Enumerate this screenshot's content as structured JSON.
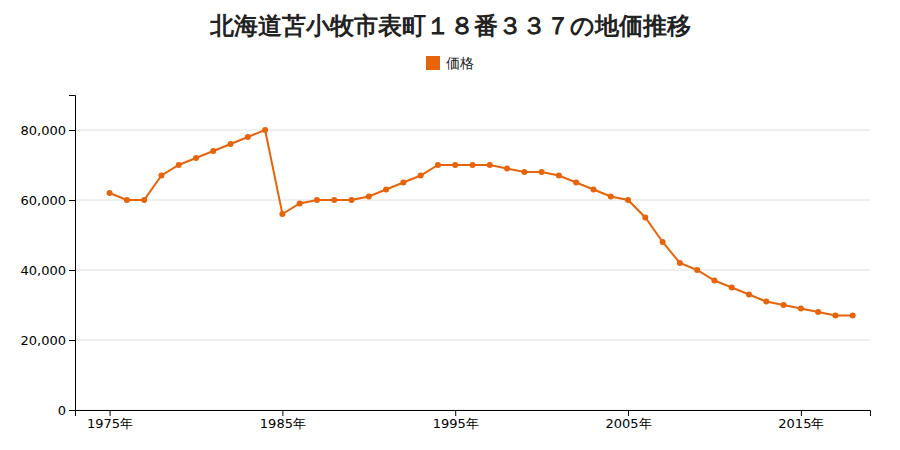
{
  "chart_data": {
    "type": "line",
    "title": "北海道苫小牧市表町１８番３３７の地価推移",
    "x": [
      1975,
      1976,
      1977,
      1978,
      1979,
      1980,
      1981,
      1982,
      1983,
      1984,
      1985,
      1986,
      1987,
      1988,
      1989,
      1990,
      1991,
      1992,
      1993,
      1994,
      1995,
      1996,
      1997,
      1998,
      1999,
      2000,
      2001,
      2002,
      2003,
      2004,
      2005,
      2006,
      2007,
      2008,
      2009,
      2010,
      2011,
      2012,
      2013,
      2014,
      2015,
      2016,
      2017,
      2018
    ],
    "series": [
      {
        "name": "価格",
        "color": "#E8640A",
        "values": [
          62000,
          60000,
          60000,
          67000,
          70000,
          72000,
          74000,
          76000,
          78000,
          80000,
          56000,
          59000,
          60000,
          60000,
          60000,
          61000,
          63000,
          65000,
          67000,
          70000,
          70000,
          70000,
          70000,
          69000,
          68000,
          68000,
          67000,
          65000,
          63000,
          61000,
          60000,
          55000,
          48000,
          42000,
          40000,
          37000,
          35000,
          33000,
          31000,
          30000,
          29000,
          28000,
          27000,
          27000
        ]
      }
    ],
    "xlim": [
      1973,
      2019
    ],
    "xticks": [
      {
        "value": 1975,
        "label": "1975年"
      },
      {
        "value": 1985,
        "label": "1985年"
      },
      {
        "value": 1995,
        "label": "1995年"
      },
      {
        "value": 2005,
        "label": "2005年"
      },
      {
        "value": 2015,
        "label": "2015年"
      }
    ],
    "ylim": [
      0,
      90000
    ],
    "yticks": [
      0,
      {
        "value": 20000,
        "label": "20,000"
      },
      {
        "value": 40000,
        "label": "40,000"
      },
      {
        "value": 60000,
        "label": "60,000"
      },
      {
        "value": 80000,
        "label": "80,000"
      }
    ],
    "grid": true,
    "legend": "top",
    "marker": "circle"
  }
}
